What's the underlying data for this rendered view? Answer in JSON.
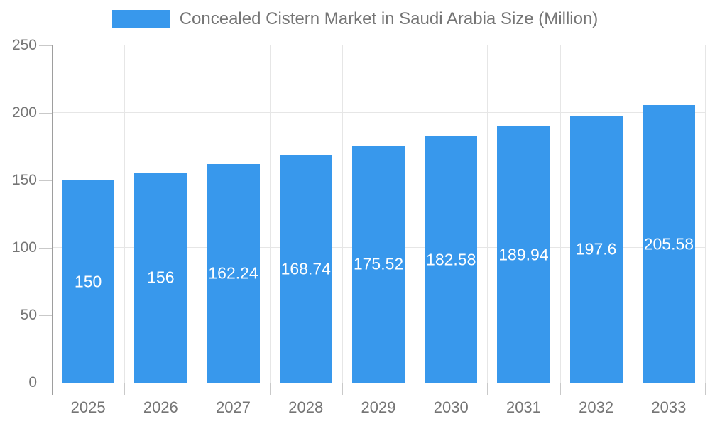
{
  "chart_data": {
    "type": "bar",
    "title": "Concealed Cistern Market in Saudi Arabia Size (Million)",
    "categories": [
      "2025",
      "2026",
      "2027",
      "2028",
      "2029",
      "2030",
      "2031",
      "2032",
      "2033"
    ],
    "values": [
      150,
      156,
      162.24,
      168.74,
      175.52,
      182.58,
      189.94,
      197.6,
      205.58
    ],
    "value_labels": [
      "150",
      "156",
      "162.24",
      "168.74",
      "175.52",
      "182.58",
      "189.94",
      "197.6",
      "205.58"
    ],
    "xlabel": "",
    "ylabel": "",
    "ylim": [
      0,
      250
    ],
    "ytick_step": 50,
    "ytick_labels": [
      "0",
      "50",
      "100",
      "150",
      "200",
      "250"
    ],
    "grid": true,
    "legend_position": "top",
    "colors": {
      "bar": "#3898EC",
      "bar_label": "#FFFFFF",
      "axis_text": "#757575",
      "grid": "#E6E6E6",
      "axis_line": "#9E9E9E",
      "tick": "#C9C9C9",
      "baseline": "#BBBBBB"
    }
  }
}
